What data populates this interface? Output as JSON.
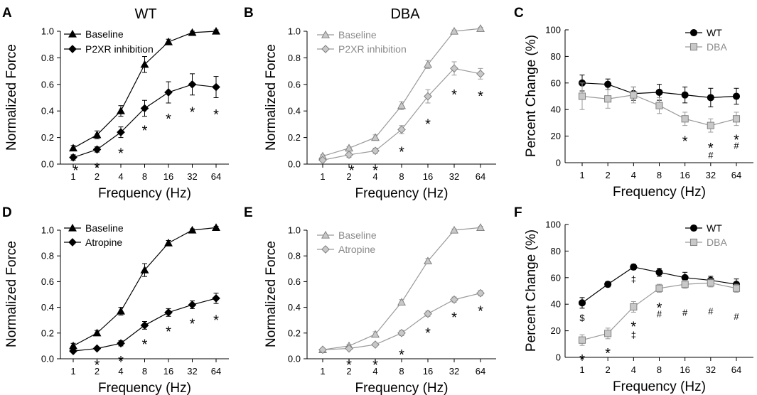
{
  "figure": {
    "colors": {
      "wt": "#000000",
      "dba_line": "#9a9a9a",
      "dba_fill": "#c8c8c8",
      "axis": "#000000"
    }
  },
  "chart_data": [
    {
      "panel": "A",
      "type": "line",
      "title": "WT",
      "xlabel": "Frequency (Hz)",
      "ylabel": "Normalized Force",
      "categories": [
        "1",
        "2",
        "4",
        "8",
        "16",
        "32",
        "64"
      ],
      "ylim": [
        0,
        1.0
      ],
      "yticks": [
        "0.0",
        "0.2",
        "0.4",
        "0.6",
        "0.8",
        "1.0"
      ],
      "series": [
        {
          "name": "Baseline",
          "marker": "triangle",
          "style": "black",
          "values": [
            0.12,
            0.22,
            0.4,
            0.75,
            0.92,
            0.99,
            1.0
          ],
          "errors": [
            0.02,
            0.03,
            0.04,
            0.06,
            0.02,
            0.01,
            0.01
          ]
        },
        {
          "name": "P2XR inhibition",
          "marker": "diamond",
          "style": "black",
          "values": [
            0.05,
            0.11,
            0.24,
            0.42,
            0.54,
            0.6,
            0.58
          ],
          "errors": [
            0.02,
            0.02,
            0.04,
            0.06,
            0.08,
            0.08,
            0.08
          ]
        }
      ],
      "annotations": [
        {
          "xi": 0.1,
          "y": -0.02,
          "text": "*"
        },
        {
          "xi": 1,
          "y": 0.0,
          "text": "*"
        },
        {
          "xi": 2,
          "y": 0.11,
          "text": "*"
        },
        {
          "xi": 3,
          "y": 0.28,
          "text": "*"
        },
        {
          "xi": 4,
          "y": 0.37,
          "text": "*"
        },
        {
          "xi": 5,
          "y": 0.42,
          "text": "*"
        },
        {
          "xi": 6,
          "y": 0.4,
          "text": "*"
        }
      ]
    },
    {
      "panel": "B",
      "type": "line",
      "title": "DBA",
      "xlabel": "Frequency (Hz)",
      "ylabel": "Normalized Force",
      "categories": [
        "1",
        "2",
        "4",
        "8",
        "16",
        "32",
        "64"
      ],
      "ylim": [
        0,
        1.0
      ],
      "yticks": [
        "0.0",
        "0.2",
        "0.4",
        "0.6",
        "0.8",
        "1.0"
      ],
      "series": [
        {
          "name": "Baseline",
          "marker": "triangle",
          "style": "gray",
          "values": [
            0.06,
            0.12,
            0.2,
            0.44,
            0.75,
            1.0,
            1.02
          ],
          "errors": [
            0.01,
            0.01,
            0.02,
            0.03,
            0.03,
            0.01,
            0.01
          ]
        },
        {
          "name": "P2XR inhibition",
          "marker": "diamond",
          "style": "gray",
          "values": [
            0.03,
            0.07,
            0.1,
            0.26,
            0.51,
            0.72,
            0.68
          ],
          "errors": [
            0.01,
            0.02,
            0.02,
            0.03,
            0.05,
            0.05,
            0.04
          ]
        }
      ],
      "annotations": [
        {
          "xi": 1.1,
          "y": -0.02,
          "text": "*"
        },
        {
          "xi": 2,
          "y": -0.02,
          "text": "*"
        },
        {
          "xi": 3,
          "y": 0.12,
          "text": "*"
        },
        {
          "xi": 4,
          "y": 0.33,
          "text": "*"
        },
        {
          "xi": 5,
          "y": 0.55,
          "text": "*"
        },
        {
          "xi": 6,
          "y": 0.54,
          "text": "*"
        }
      ]
    },
    {
      "panel": "C",
      "type": "line",
      "title": "",
      "xlabel": "Frequency (Hz)",
      "ylabel": "Percent Change (%)",
      "categories": [
        "1",
        "2",
        "4",
        "8",
        "16",
        "32",
        "64"
      ],
      "ylim": [
        0,
        100
      ],
      "yticks": [
        "0",
        "20",
        "40",
        "60",
        "80",
        "100"
      ],
      "series": [
        {
          "name": "WT",
          "marker": "circle",
          "style": "black",
          "values": [
            60,
            59,
            52,
            53,
            51,
            49,
            50
          ],
          "errors": [
            6,
            4,
            5,
            6,
            6,
            7,
            6
          ]
        },
        {
          "name": "DBA",
          "marker": "square",
          "style": "gray",
          "values": [
            50,
            48,
            51,
            43,
            33,
            28,
            33
          ],
          "errors": [
            10,
            7,
            6,
            6,
            5,
            5,
            5
          ]
        }
      ],
      "annotations": [
        {
          "xi": 4,
          "y": 19,
          "text": "*"
        },
        {
          "xi": 5,
          "y": 14,
          "text": "*"
        },
        {
          "xi": 5,
          "y": 6,
          "text": "#"
        },
        {
          "xi": 6,
          "y": 20,
          "text": "*"
        },
        {
          "xi": 6,
          "y": 13,
          "text": "#"
        }
      ]
    },
    {
      "panel": "D",
      "type": "line",
      "title": "",
      "xlabel": "Frequency (Hz)",
      "ylabel": "Normalized Force",
      "categories": [
        "1",
        "2",
        "4",
        "8",
        "16",
        "32",
        "64"
      ],
      "ylim": [
        0,
        1.0
      ],
      "yticks": [
        "0.0",
        "0.2",
        "0.4",
        "0.6",
        "0.8",
        "1.0"
      ],
      "series": [
        {
          "name": "Baseline",
          "marker": "triangle",
          "style": "black",
          "values": [
            0.1,
            0.2,
            0.37,
            0.69,
            0.9,
            1.0,
            1.02
          ],
          "errors": [
            0.02,
            0.02,
            0.03,
            0.05,
            0.02,
            0.01,
            0.01
          ]
        },
        {
          "name": "Atropine",
          "marker": "diamond",
          "style": "black",
          "values": [
            0.06,
            0.08,
            0.12,
            0.26,
            0.36,
            0.42,
            0.47
          ],
          "errors": [
            0.01,
            0.01,
            0.02,
            0.03,
            0.03,
            0.03,
            0.04
          ]
        }
      ],
      "annotations": [
        {
          "xi": 1,
          "y": -0.02,
          "text": "*"
        },
        {
          "xi": 2,
          "y": 0.01,
          "text": "*"
        },
        {
          "xi": 3,
          "y": 0.14,
          "text": "*"
        },
        {
          "xi": 4,
          "y": 0.24,
          "text": "*"
        },
        {
          "xi": 5,
          "y": 0.3,
          "text": "*"
        },
        {
          "xi": 6,
          "y": 0.33,
          "text": "*"
        }
      ]
    },
    {
      "panel": "E",
      "type": "line",
      "title": "",
      "xlabel": "Frequency (Hz)",
      "ylabel": "Normalized Force",
      "categories": [
        "1",
        "2",
        "4",
        "8",
        "16",
        "32",
        "64"
      ],
      "ylim": [
        0,
        1.0
      ],
      "yticks": [
        "0.0",
        "0.2",
        "0.4",
        "0.6",
        "0.8",
        "1.0"
      ],
      "series": [
        {
          "name": "Baseline",
          "marker": "triangle",
          "style": "gray",
          "values": [
            0.07,
            0.1,
            0.19,
            0.44,
            0.76,
            1.0,
            1.02
          ],
          "errors": [
            0.01,
            0.01,
            0.02,
            0.02,
            0.02,
            0.01,
            0.01
          ]
        },
        {
          "name": "Atropine",
          "marker": "diamond",
          "style": "gray",
          "values": [
            0.07,
            0.08,
            0.11,
            0.2,
            0.35,
            0.46,
            0.51
          ],
          "errors": [
            0.01,
            0.01,
            0.01,
            0.02,
            0.02,
            0.02,
            0.02
          ]
        }
      ],
      "annotations": [
        {
          "xi": 1,
          "y": -0.02,
          "text": "*"
        },
        {
          "xi": 2,
          "y": -0.02,
          "text": "*"
        },
        {
          "xi": 3,
          "y": 0.06,
          "text": "*"
        },
        {
          "xi": 4,
          "y": 0.23,
          "text": "*"
        },
        {
          "xi": 5,
          "y": 0.35,
          "text": "*"
        },
        {
          "xi": 6,
          "y": 0.4,
          "text": "*"
        }
      ]
    },
    {
      "panel": "F",
      "type": "line",
      "title": "",
      "xlabel": "Frequency (Hz)",
      "ylabel": "Percent Change (%)",
      "categories": [
        "1",
        "2",
        "4",
        "8",
        "16",
        "32",
        "64"
      ],
      "ylim": [
        0,
        100
      ],
      "yticks": [
        "0",
        "20",
        "40",
        "60",
        "80",
        "100"
      ],
      "series": [
        {
          "name": "WT",
          "marker": "circle",
          "style": "black",
          "values": [
            41,
            55,
            68,
            64,
            60,
            58,
            55
          ],
          "errors": [
            4,
            2,
            2,
            3,
            4,
            3,
            4
          ]
        },
        {
          "name": "DBA",
          "marker": "square",
          "style": "gray",
          "values": [
            13,
            18,
            38,
            52,
            55,
            56,
            52
          ],
          "errors": [
            4,
            4,
            4,
            3,
            3,
            3,
            3
          ]
        }
      ],
      "annotations": [
        {
          "xi": 0,
          "y": 30,
          "text": "$"
        },
        {
          "xi": 2,
          "y": 59,
          "text": "‡"
        },
        {
          "xi": 0,
          "y": 1,
          "text": "*"
        },
        {
          "xi": 1,
          "y": 6,
          "text": "*"
        },
        {
          "xi": 2,
          "y": 26,
          "text": "*"
        },
        {
          "xi": 2,
          "y": 17,
          "text": "‡"
        },
        {
          "xi": 3,
          "y": 40,
          "text": "*"
        },
        {
          "xi": 3,
          "y": 33,
          "text": "#"
        },
        {
          "xi": 4,
          "y": 34,
          "text": "#"
        },
        {
          "xi": 5,
          "y": 35,
          "text": "#"
        },
        {
          "xi": 6,
          "y": 31,
          "text": "#"
        }
      ]
    }
  ]
}
